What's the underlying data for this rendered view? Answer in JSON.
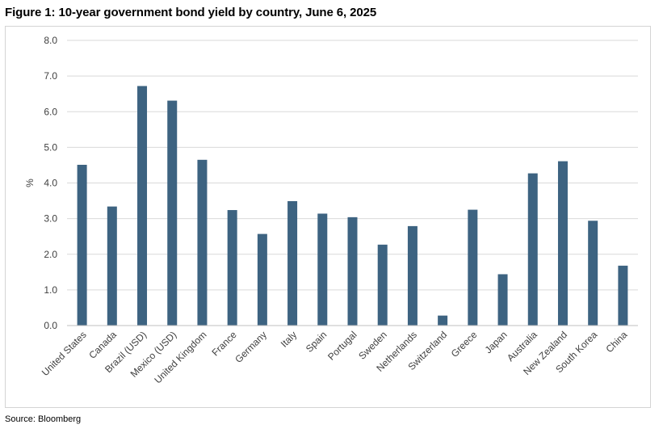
{
  "title": "Figure 1: 10-year government bond yield by country, June 6, 2025",
  "source": "Source: Bloomberg",
  "colors": {
    "bar": "#3d6381",
    "grid": "#d9d9d9",
    "frame": "#d4d4d4",
    "text": "#404040"
  },
  "chart_data": {
    "type": "bar",
    "title": "",
    "xlabel": "",
    "ylabel": "%",
    "ylim": [
      0,
      8
    ],
    "ytick_labels": [
      "0.0",
      "1.0",
      "2.0",
      "3.0",
      "4.0",
      "5.0",
      "6.0",
      "7.0",
      "8.0"
    ],
    "grid": true,
    "legend": "none",
    "categories": [
      "United States",
      "Canada",
      "Brazil (USD)",
      "Mexico (USD)",
      "United Kingdom",
      "France",
      "Germany",
      "Italy",
      "Spain",
      "Portugal",
      "Sweden",
      "Netherlands",
      "Switzerland",
      "Greece",
      "Japan",
      "Australia",
      "New Zealand",
      "South Korea",
      "China"
    ],
    "values": [
      4.51,
      3.34,
      6.72,
      6.31,
      4.65,
      3.24,
      2.57,
      3.49,
      3.14,
      3.04,
      2.27,
      2.79,
      0.28,
      3.25,
      1.44,
      4.27,
      4.61,
      2.94,
      1.68
    ]
  }
}
